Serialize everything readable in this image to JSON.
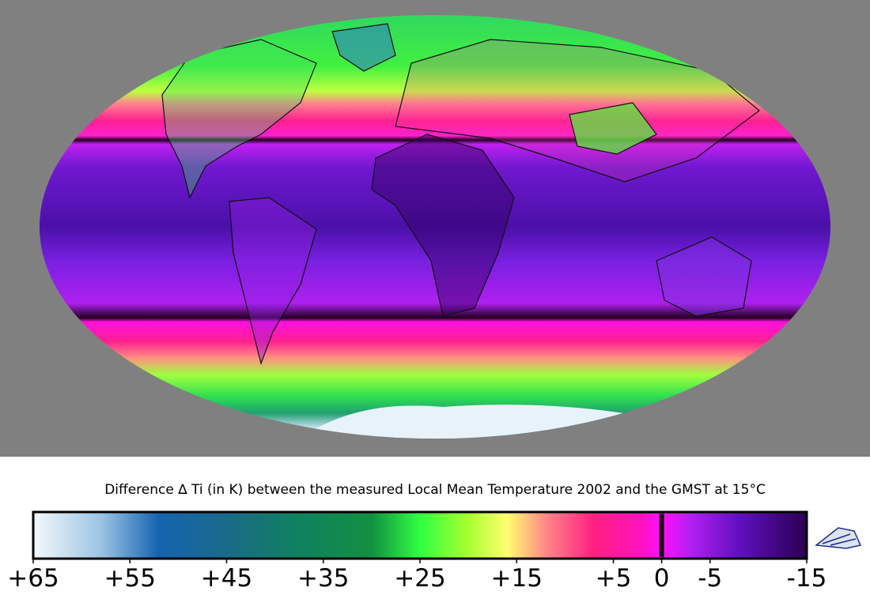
{
  "map": {
    "caption": "Difference ∆ Ti (in K) between the measured Local Mean Temperature 2002 and the GMST at 15°C",
    "colorbar": {
      "clim": [
        65,
        -15
      ],
      "ticks": [
        {
          "value": 65,
          "label": "+65"
        },
        {
          "value": 55,
          "label": "+55"
        },
        {
          "value": 45,
          "label": "+45"
        },
        {
          "value": 35,
          "label": "+35"
        },
        {
          "value": 25,
          "label": "+25"
        },
        {
          "value": 15,
          "label": "+15"
        },
        {
          "value": 5,
          "label": "+5"
        },
        0,
        -5,
        -15
      ],
      "colormap": [
        {
          "value": 65,
          "color": "#f4f8fc"
        },
        {
          "value": 58,
          "color": "#9cc4e4"
        },
        {
          "value": 52,
          "color": "#1464b0"
        },
        {
          "value": 45,
          "color": "#1a6a8a"
        },
        {
          "value": 38,
          "color": "#108060"
        },
        {
          "value": 30,
          "color": "#129040"
        },
        {
          "value": 25,
          "color": "#30ff40"
        },
        {
          "value": 20,
          "color": "#a8ff30"
        },
        {
          "value": 16,
          "color": "#ffff70"
        },
        {
          "value": 12,
          "color": "#ff8888"
        },
        {
          "value": 7,
          "color": "#ff2080"
        },
        {
          "value": 2,
          "color": "#ff10c0"
        },
        {
          "value": 0,
          "color": "#ff10ff"
        },
        {
          "value": -3,
          "color": "#b020f0"
        },
        {
          "value": -8,
          "color": "#6010c0"
        },
        {
          "value": -15,
          "color": "#2a0050"
        }
      ]
    }
  }
}
